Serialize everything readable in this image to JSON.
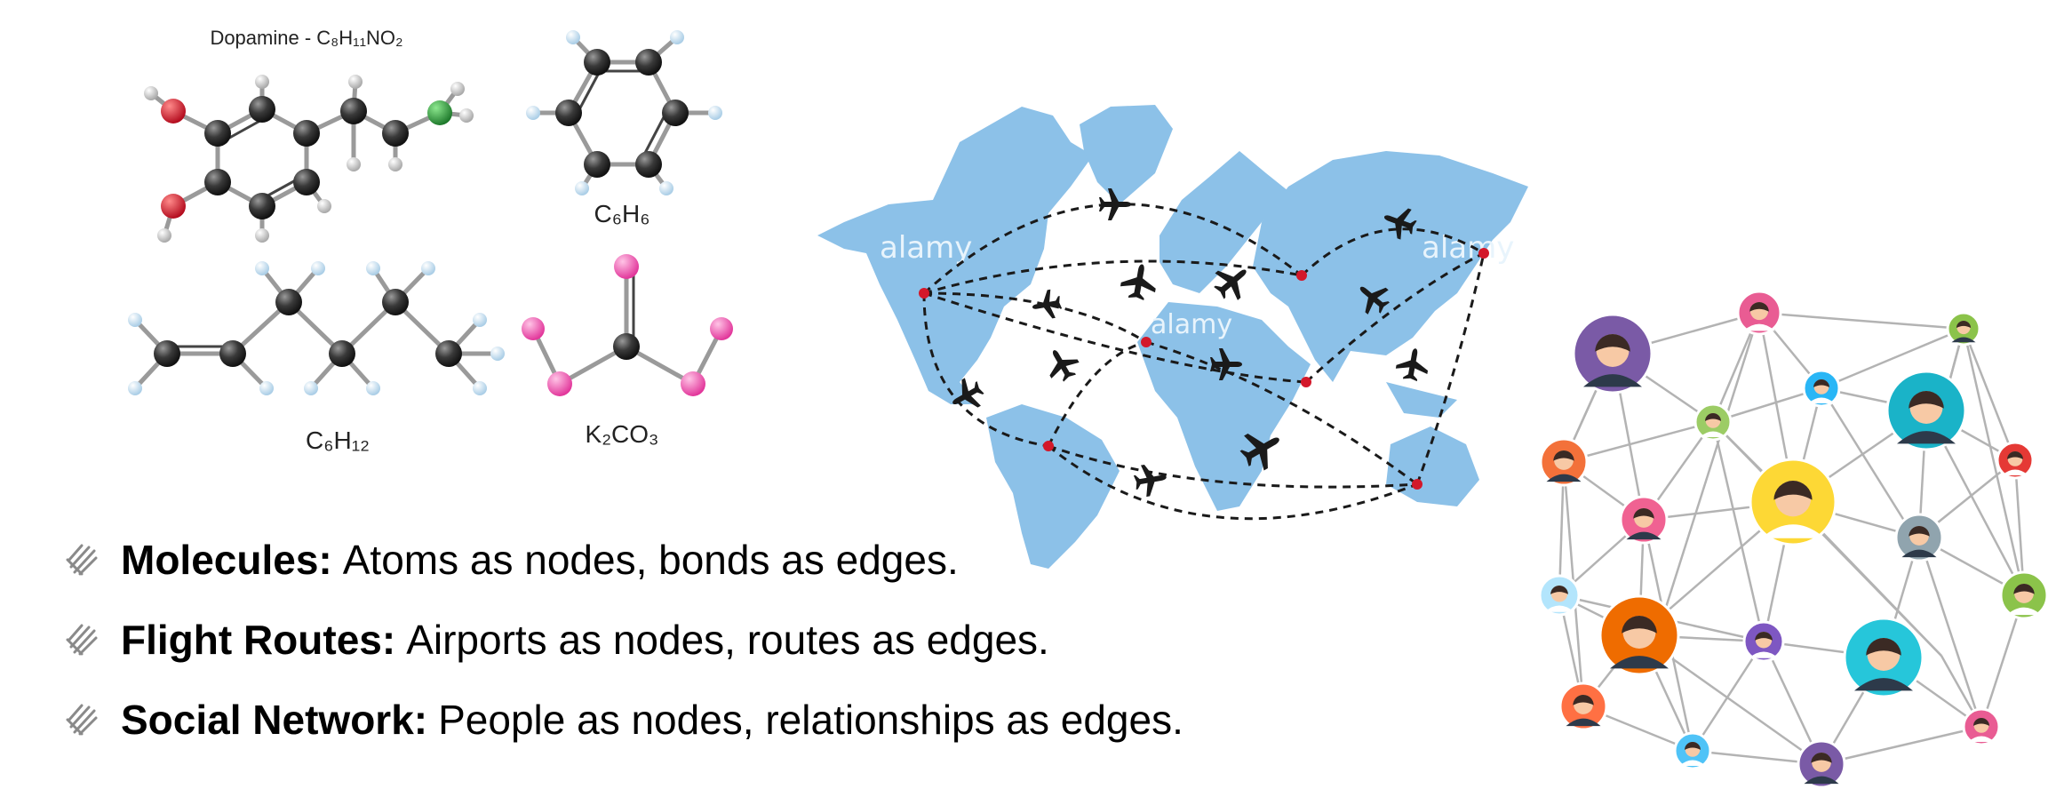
{
  "molecules": {
    "dopamine_label": "Dopamine - C₈H₁₁NO₂",
    "benzene_label": "C₆H₆",
    "hexene_label": "C₆H₁₂",
    "carbonate_label": "K₂CO₃"
  },
  "colors": {
    "carbon": "#2e2e2e",
    "hydrogen": "#bfe0f5",
    "oxygen": "#d6182d",
    "nitrogen": "#2b9a3b",
    "potassium": "#e94fa9",
    "map_land": "#8cc1e8",
    "route": "#1a1a1a",
    "airport": "#d3182a",
    "network_edge": "#b3b3b3"
  },
  "map": {
    "watermark": "alamy"
  },
  "bullets": [
    {
      "term": "Molecules:",
      "desc": "Atoms as nodes, bonds as edges."
    },
    {
      "term": "Flight Routes:",
      "desc": "Airports as nodes, routes as edges."
    },
    {
      "term": "Social Network:",
      "desc": "People as nodes, relationships as edges."
    }
  ],
  "network": {
    "avatar_colors": [
      "#7a5aa6",
      "#e95c93",
      "#8bc34a",
      "#29b6f6",
      "#f3713a",
      "#9ccc65",
      "#1ab3c8",
      "#e53935",
      "#f06292",
      "#fdd835",
      "#90a4ae",
      "#b3e5fc",
      "#ef6c00",
      "#7e57c2",
      "#26c6da",
      "#8bc34a",
      "#ff7043",
      "#4fc3f7"
    ]
  }
}
